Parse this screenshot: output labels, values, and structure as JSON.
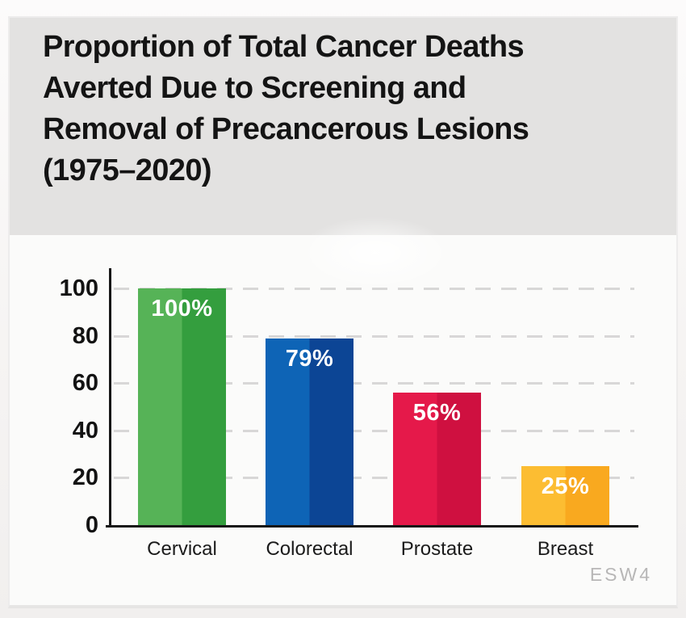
{
  "header": {
    "title_lines": [
      "Proportion of Total Cancer Deaths",
      "Averted Due to Screening and",
      "Removal of Precancerous Lesions",
      "(1975–2020)"
    ]
  },
  "watermark": "ESW4",
  "chart_data": {
    "type": "bar",
    "title": "Proportion of Total Cancer Deaths Averted Due to Screening and Removal of Precancerous Lesions (1975–2020)",
    "categories": [
      "Cervical",
      "Colorectal",
      "Prostate",
      "Breast"
    ],
    "values": [
      100,
      79,
      56,
      25
    ],
    "value_labels": [
      "100%",
      "79%",
      "56%",
      "25%"
    ],
    "xlabel": "",
    "ylabel": "",
    "yticks": [
      0,
      20,
      40,
      60,
      80,
      100
    ],
    "ylim": [
      0,
      108
    ],
    "grid": "horizontal-dashed",
    "legend": "none",
    "colors": {
      "bar_light": [
        "#56b357",
        "#0e64b6",
        "#e5194a",
        "#fcbd32"
      ],
      "bar_dark": [
        "#349e3e",
        "#0c4595",
        "#cf1040",
        "#f9a91f"
      ],
      "value_label_text": "#ffffff",
      "axis": "#161616",
      "grid": "#d8d7d7",
      "header_background": "#e3e2e1",
      "chart_background": "#fbfbfa",
      "tick_text": "#131313",
      "category_text": "#1b1b1b",
      "watermark_text": "#b8b7b7"
    }
  }
}
